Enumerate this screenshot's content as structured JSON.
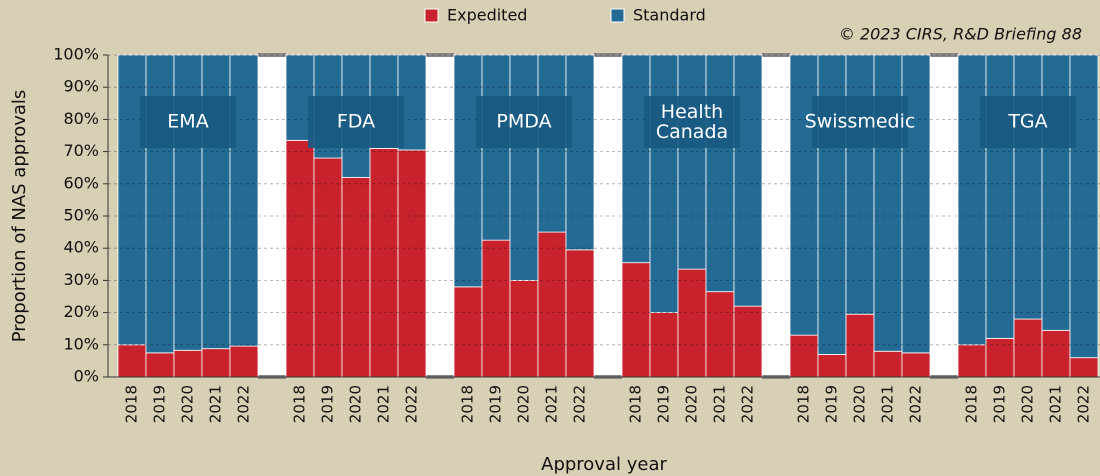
{
  "chart_data": {
    "type": "stacked_bar",
    "annotation": "© 2023 CIRS, R&D Briefing 88",
    "xlabel": "Approval year",
    "ylabel": "Proportion of NAS approvals",
    "ylim": [
      0,
      100
    ],
    "yticks": [
      {
        "value": 0,
        "label": "0%"
      },
      {
        "value": 10,
        "label": "10%"
      },
      {
        "value": 20,
        "label": "20%"
      },
      {
        "value": 30,
        "label": "30%"
      },
      {
        "value": 40,
        "label": "40%"
      },
      {
        "value": 50,
        "label": "50%"
      },
      {
        "value": 60,
        "label": "60%"
      },
      {
        "value": 70,
        "label": "70%"
      },
      {
        "value": 80,
        "label": "80%"
      },
      {
        "value": 90,
        "label": "90%"
      },
      {
        "value": 100,
        "label": "100%"
      }
    ],
    "grid": true,
    "legend": "top",
    "groups": [
      {
        "label": "EMA",
        "categories": [
          "2018",
          "2019",
          "2020",
          "2021",
          "2022"
        ]
      },
      {
        "label": "FDA",
        "categories": [
          "2018",
          "2019",
          "2020",
          "2021",
          "2022"
        ]
      },
      {
        "label": "PMDA",
        "categories": [
          "2018",
          "2019",
          "2020",
          "2021",
          "2022"
        ]
      },
      {
        "label": "Health Canada",
        "categories": [
          "2018",
          "2019",
          "2020",
          "2021",
          "2022"
        ]
      },
      {
        "label": "Swissmedic",
        "categories": [
          "2018",
          "2019",
          "2020",
          "2021",
          "2022"
        ]
      },
      {
        "label": "TGA",
        "categories": [
          "2018",
          "2019",
          "2020",
          "2021",
          "2022"
        ]
      }
    ],
    "series": [
      {
        "name": "Expedited",
        "color": "#c8232c",
        "values": [
          [
            10,
            7.5,
            8.3,
            8.8,
            9.6
          ],
          [
            73.5,
            68,
            62,
            71,
            70.5
          ],
          [
            28,
            42.5,
            30,
            45,
            39.5
          ],
          [
            35.5,
            20,
            33.5,
            26.5,
            22
          ],
          [
            13,
            7,
            19.5,
            8,
            7.5
          ],
          [
            10,
            12,
            18,
            14.5,
            6
          ]
        ]
      },
      {
        "name": "Standard",
        "color": "#236a94",
        "values": [
          [
            90,
            92.5,
            91.7,
            91.2,
            90.4
          ],
          [
            26.5,
            32,
            38,
            29,
            29.5
          ],
          [
            72,
            57.5,
            70,
            55,
            60.5
          ],
          [
            64.5,
            80,
            66.5,
            73.5,
            78
          ],
          [
            87,
            93,
            80.5,
            92,
            92.5
          ],
          [
            90,
            88,
            82,
            85.5,
            94
          ]
        ]
      }
    ]
  }
}
